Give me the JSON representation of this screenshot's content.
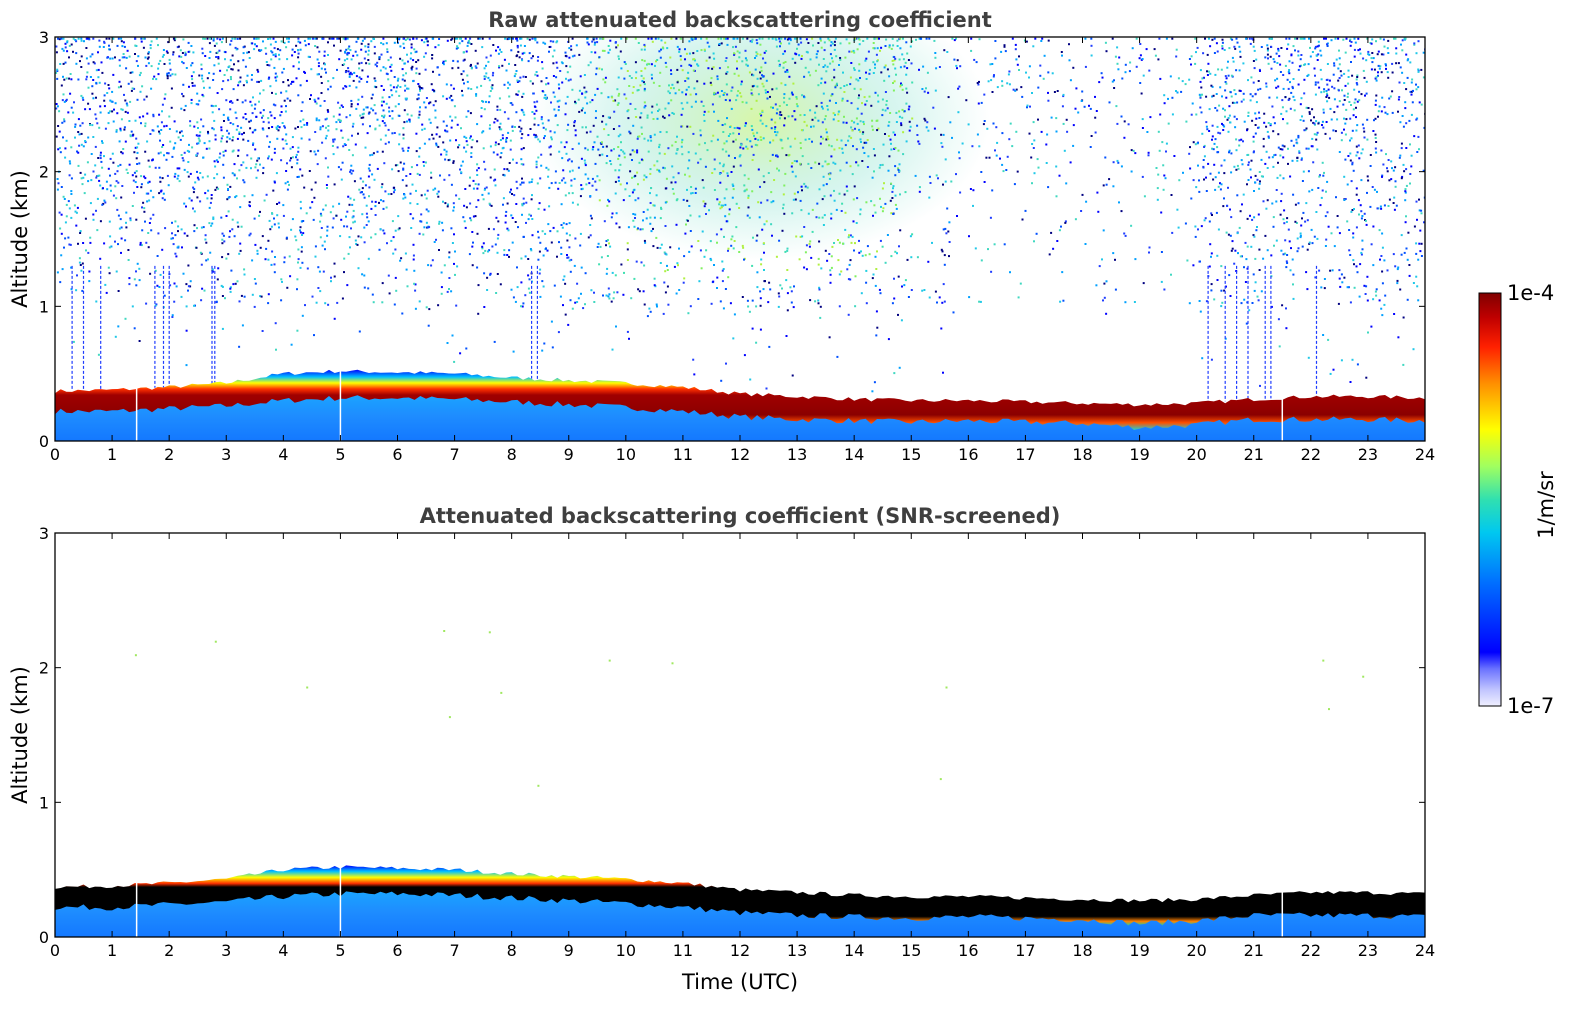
{
  "chart_data": [
    {
      "type": "heatmap",
      "title": "Raw attenuated backscattering coefficient",
      "xlabel": "",
      "ylabel": "Altitude (km)",
      "xlim": [
        0,
        24
      ],
      "ylim": [
        0,
        3
      ],
      "x_ticks": [
        "0",
        "1",
        "2",
        "3",
        "4",
        "5",
        "6",
        "7",
        "8",
        "9",
        "10",
        "11",
        "12",
        "13",
        "14",
        "15",
        "16",
        "17",
        "18",
        "19",
        "20",
        "21",
        "22",
        "23",
        "24"
      ],
      "y_ticks": [
        "0",
        "1",
        "2",
        "3"
      ],
      "boundary_layer": {
        "time_utc": [
          0,
          1,
          2,
          3,
          4,
          5,
          6,
          7,
          8,
          9,
          10,
          11,
          12,
          13,
          14,
          15,
          16,
          17,
          18,
          19,
          20,
          21,
          22,
          23,
          24
        ],
        "top_km": [
          0.37,
          0.38,
          0.4,
          0.43,
          0.5,
          0.52,
          0.51,
          0.5,
          0.47,
          0.45,
          0.43,
          0.4,
          0.35,
          0.33,
          0.31,
          0.3,
          0.3,
          0.29,
          0.28,
          0.27,
          0.28,
          0.31,
          0.33,
          0.33,
          0.32
        ],
        "bottom_km": [
          0.22,
          0.22,
          0.24,
          0.26,
          0.3,
          0.32,
          0.32,
          0.31,
          0.29,
          0.27,
          0.25,
          0.22,
          0.18,
          0.16,
          0.15,
          0.14,
          0.15,
          0.14,
          0.13,
          0.1,
          0.12,
          0.16,
          0.16,
          0.16,
          0.15
        ]
      },
      "noise_dense_above_km": 1.0,
      "noise_enhanced_time_utc": [
        9.5,
        15
      ],
      "noise_sparse_time_utc": [
        15,
        20
      ]
    },
    {
      "type": "heatmap",
      "title": "Attenuated backscattering coefficient (SNR-screened)",
      "xlabel": "Time (UTC)",
      "ylabel": "Altitude (km)",
      "xlim": [
        0,
        24
      ],
      "ylim": [
        0,
        3
      ],
      "x_ticks": [
        "0",
        "1",
        "2",
        "3",
        "4",
        "5",
        "6",
        "7",
        "8",
        "9",
        "10",
        "11",
        "12",
        "13",
        "14",
        "15",
        "16",
        "17",
        "18",
        "19",
        "20",
        "21",
        "22",
        "23",
        "24"
      ],
      "y_ticks": [
        "0",
        "1",
        "2",
        "3"
      ],
      "saturated_core_color": "black"
    }
  ],
  "colorbar": {
    "label": "1/m/sr",
    "min_label": "1e-7",
    "max_label": "1e-4",
    "scale": "log",
    "colormap": "jet"
  },
  "colors": {
    "boundary_layer": "#8b0000",
    "near_surface": "#1e8cff",
    "noise": "#1f3cff"
  }
}
